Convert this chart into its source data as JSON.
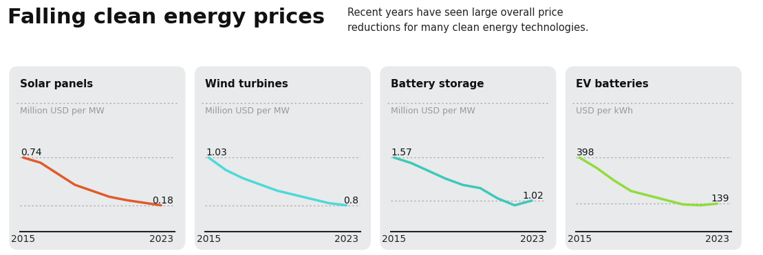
{
  "title": "Falling clean energy prices",
  "subtitle": "Recent years have seen large overall price\nreductions for many clean energy technologies.",
  "background_color": "#ffffff",
  "panel_bg": "#e8eaeb",
  "panels": [
    {
      "title": "Solar panels",
      "unit": "Million USD per MW",
      "start_label": "0.74",
      "end_label": "0.18",
      "line_color": "#e05a2b",
      "x": [
        2015,
        2016,
        2017,
        2018,
        2019,
        2020,
        2021,
        2022,
        2023
      ],
      "y": [
        0.74,
        0.68,
        0.55,
        0.42,
        0.35,
        0.28,
        0.24,
        0.21,
        0.18
      ]
    },
    {
      "title": "Wind turbines",
      "unit": "Million USD per MW",
      "start_label": "1.03",
      "end_label": "0.8",
      "line_color": "#4dd9d9",
      "x": [
        2015,
        2016,
        2017,
        2018,
        2019,
        2020,
        2021,
        2022,
        2023
      ],
      "y": [
        1.03,
        0.97,
        0.93,
        0.9,
        0.87,
        0.85,
        0.83,
        0.81,
        0.8
      ]
    },
    {
      "title": "Battery storage",
      "unit": "Million USD per MW",
      "start_label": "1.57",
      "end_label": "1.02",
      "line_color": "#3dc8b8",
      "x": [
        2015,
        2016,
        2017,
        2018,
        2019,
        2020,
        2021,
        2022,
        2023
      ],
      "y": [
        1.57,
        1.5,
        1.4,
        1.3,
        1.22,
        1.18,
        1.05,
        0.96,
        1.02
      ]
    },
    {
      "title": "EV batteries",
      "unit": "USD per kWh",
      "start_label": "398",
      "end_label": "139",
      "line_color": "#8fdc3c",
      "x": [
        2015,
        2016,
        2017,
        2018,
        2019,
        2020,
        2021,
        2022,
        2023
      ],
      "y": [
        398,
        340,
        270,
        210,
        185,
        160,
        135,
        130,
        139
      ]
    }
  ],
  "dotted_line_style": {
    "color": "#aaaaaa",
    "linewidth": 0.9,
    "linestyle": [
      2,
      3
    ]
  },
  "title_fontsize": 22,
  "subtitle_fontsize": 10.5,
  "panel_title_fontsize": 11,
  "panel_unit_fontsize": 9,
  "value_fontsize": 10,
  "tick_fontsize": 10
}
